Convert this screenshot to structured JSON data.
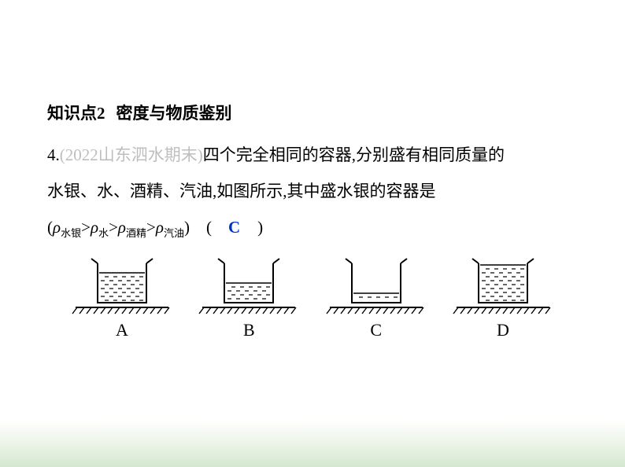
{
  "heading": {
    "label": "知识点2",
    "title": "密度与物质鉴别"
  },
  "q": {
    "num": "4.",
    "source": "(2022山东泗水期末)",
    "line1_tail": "四个完全相同的容器,分别盛有相同质量的",
    "line2": "水银、水、酒精、汽油,如图所示,其中盛水银的容器是",
    "sub1": "水银",
    "sub2": "水",
    "sub3": "酒精",
    "sub4": "汽油",
    "answer": "C"
  },
  "figs": {
    "beaker": {
      "outline": "#000000",
      "stroke_w": 2,
      "width": 86,
      "height": 70,
      "hatch_color": "#000000"
    },
    "levels": {
      "A": 0.76,
      "B": 0.5,
      "C": 0.24,
      "D": 0.96
    },
    "labels": {
      "A": "A",
      "B": "B",
      "C": "C",
      "D": "D"
    }
  },
  "colors": {
    "answer": "#0033c0",
    "faded": "#c0bebd",
    "text": "#000000"
  }
}
